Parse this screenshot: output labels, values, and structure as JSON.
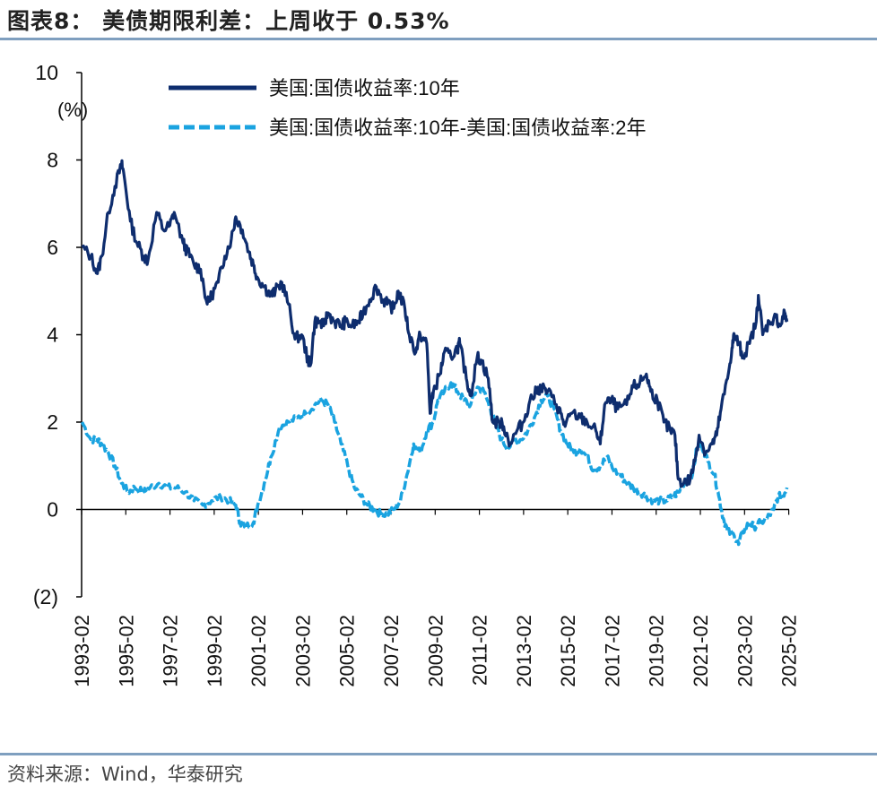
{
  "header": {
    "title": "图表8：  美债期限利差：上周收于 0.53%"
  },
  "footer": {
    "source": "资料来源：Wind，华泰研究"
  },
  "colors": {
    "series_10y": "#0e2d6e",
    "series_spread": "#1aa3e0",
    "rule": "#7f9fbf"
  },
  "chart_data": {
    "type": "line",
    "title": "美债期限利差：上周收于 0.53%",
    "ylabel": "(%)",
    "ylim": [
      -2,
      10
    ],
    "yticks": [
      10,
      8,
      6,
      4,
      2,
      0,
      -2
    ],
    "ytick_labels": [
      "10",
      "8",
      "6",
      "4",
      "2",
      "0",
      "(2)"
    ],
    "xlim": [
      1993.08,
      2025.3
    ],
    "xtick_labels": [
      "1993-02",
      "1995-02",
      "1997-02",
      "1999-02",
      "2001-02",
      "2003-02",
      "2005-02",
      "2007-02",
      "2009-02",
      "2011-02",
      "2013-02",
      "2015-02",
      "2017-02",
      "2019-02",
      "2021-02",
      "2023-02",
      "2025-02"
    ],
    "legend_position": "top",
    "series": [
      {
        "name": "美国:国债收益率:10年",
        "style": "solid",
        "x": [
          1993.1,
          1993.5,
          1993.8,
          1994.0,
          1994.3,
          1994.6,
          1994.9,
          1995.0,
          1995.3,
          1995.6,
          1995.9,
          1996.1,
          1996.5,
          1996.8,
          1997.1,
          1997.3,
          1997.7,
          1997.9,
          1998.2,
          1998.5,
          1998.8,
          1999.0,
          1999.3,
          1999.6,
          1999.9,
          2000.1,
          2000.4,
          2000.7,
          2000.9,
          2001.1,
          2001.4,
          2001.7,
          2001.9,
          2002.2,
          2002.5,
          2002.8,
          2003.1,
          2003.4,
          2003.5,
          2003.7,
          2003.9,
          2004.1,
          2004.3,
          2004.6,
          2004.9,
          2005.1,
          2005.4,
          2005.7,
          2005.9,
          2006.2,
          2006.5,
          2006.8,
          2007.0,
          2007.3,
          2007.5,
          2007.8,
          2008.0,
          2008.3,
          2008.5,
          2008.8,
          2008.95,
          2009.1,
          2009.4,
          2009.6,
          2009.9,
          2010.2,
          2010.3,
          2010.6,
          2010.8,
          2011.1,
          2011.3,
          2011.6,
          2011.8,
          2012.1,
          2012.3,
          2012.6,
          2012.9,
          2013.2,
          2013.5,
          2013.8,
          2014.0,
          2014.3,
          2014.7,
          2014.9,
          2015.1,
          2015.4,
          2015.8,
          2016.1,
          2016.5,
          2016.7,
          2016.9,
          2017.2,
          2017.5,
          2017.9,
          2018.2,
          2018.5,
          2018.8,
          2019.0,
          2019.3,
          2019.6,
          2019.9,
          2020.1,
          2020.25,
          2020.5,
          2020.8,
          2021.0,
          2021.2,
          2021.5,
          2021.8,
          2022.0,
          2022.2,
          2022.5,
          2022.7,
          2022.8,
          2023.0,
          2023.2,
          2023.5,
          2023.8,
          2023.9,
          2024.1,
          2024.4,
          2024.7,
          2024.9,
          2025.1,
          2025.2
        ],
        "values": [
          6.0,
          5.8,
          5.4,
          5.8,
          6.8,
          7.4,
          7.9,
          7.7,
          6.6,
          6.1,
          5.8,
          5.7,
          6.8,
          6.4,
          6.5,
          6.8,
          6.1,
          5.9,
          5.6,
          5.5,
          4.7,
          4.9,
          5.2,
          5.8,
          6.2,
          6.7,
          6.4,
          5.9,
          5.6,
          5.3,
          5.1,
          4.9,
          5.0,
          5.2,
          4.7,
          3.9,
          4.0,
          3.4,
          3.3,
          4.3,
          4.3,
          4.2,
          4.5,
          4.3,
          4.2,
          4.3,
          4.2,
          4.3,
          4.5,
          4.8,
          5.1,
          4.8,
          4.7,
          4.6,
          5.0,
          4.6,
          4.0,
          3.6,
          4.0,
          3.8,
          2.2,
          2.7,
          3.1,
          3.6,
          3.5,
          3.7,
          3.8,
          3.0,
          2.6,
          3.5,
          3.4,
          3.0,
          2.0,
          2.0,
          1.9,
          1.5,
          1.8,
          2.0,
          2.5,
          2.7,
          2.8,
          2.7,
          2.4,
          2.2,
          1.9,
          2.2,
          2.1,
          2.0,
          1.8,
          1.5,
          2.4,
          2.5,
          2.3,
          2.4,
          2.8,
          2.9,
          3.1,
          2.7,
          2.5,
          2.0,
          1.8,
          1.7,
          0.7,
          0.6,
          0.7,
          1.1,
          1.7,
          1.3,
          1.5,
          1.7,
          2.3,
          3.0,
          3.7,
          4.0,
          3.8,
          3.5,
          3.8,
          4.3,
          4.9,
          4.0,
          4.3,
          4.4,
          4.2,
          4.5,
          4.3
        ]
      },
      {
        "name": "美国:国债收益率:10年-美国:国债收益率:2年",
        "style": "dashed",
        "x": [
          1993.1,
          1993.5,
          1993.8,
          1994.0,
          1994.3,
          1994.6,
          1994.9,
          1995.2,
          1995.5,
          1995.9,
          1996.2,
          1996.6,
          1997.0,
          1997.4,
          1997.8,
          1998.2,
          1998.6,
          1999.0,
          1999.4,
          1999.8,
          2000.1,
          2000.3,
          2000.5,
          2000.9,
          2001.1,
          2001.4,
          2001.7,
          2002.1,
          2002.5,
          2002.9,
          2003.3,
          2003.7,
          2004.0,
          2004.3,
          2004.6,
          2004.9,
          2005.2,
          2005.5,
          2005.8,
          2006.1,
          2006.4,
          2006.7,
          2007.0,
          2007.3,
          2007.6,
          2007.9,
          2008.2,
          2008.5,
          2008.8,
          2009.1,
          2009.3,
          2009.6,
          2009.9,
          2010.2,
          2010.5,
          2010.8,
          2011.1,
          2011.4,
          2011.7,
          2011.9,
          2012.2,
          2012.5,
          2012.8,
          2013.1,
          2013.4,
          2013.7,
          2014.0,
          2014.3,
          2014.6,
          2014.9,
          2015.2,
          2015.5,
          2015.8,
          2016.1,
          2016.4,
          2016.7,
          2017.0,
          2017.3,
          2017.6,
          2017.9,
          2018.2,
          2018.5,
          2018.8,
          2019.1,
          2019.4,
          2019.7,
          2020.0,
          2020.3,
          2020.6,
          2020.9,
          2021.1,
          2021.3,
          2021.6,
          2021.9,
          2022.1,
          2022.3,
          2022.5,
          2022.8,
          2023.0,
          2023.2,
          2023.5,
          2023.7,
          2024.0,
          2024.3,
          2024.6,
          2024.8,
          2025.0,
          2025.2
        ],
        "values": [
          2.0,
          1.6,
          1.6,
          1.5,
          1.3,
          1.0,
          0.6,
          0.4,
          0.5,
          0.4,
          0.5,
          0.6,
          0.5,
          0.5,
          0.4,
          0.2,
          0.1,
          0.2,
          0.3,
          0.2,
          0.1,
          -0.3,
          -0.4,
          -0.3,
          0.1,
          0.6,
          1.2,
          1.9,
          2.0,
          2.1,
          2.2,
          2.4,
          2.5,
          2.4,
          2.0,
          1.5,
          1.0,
          0.5,
          0.3,
          0.1,
          0.0,
          -0.1,
          -0.1,
          0.0,
          0.2,
          0.8,
          1.5,
          1.3,
          1.8,
          2.0,
          2.5,
          2.7,
          2.9,
          2.7,
          2.5,
          2.4,
          2.8,
          2.7,
          2.3,
          2.0,
          1.6,
          1.4,
          1.6,
          1.6,
          1.8,
          2.1,
          2.5,
          2.6,
          2.3,
          1.8,
          1.5,
          1.3,
          1.4,
          1.2,
          0.9,
          1.0,
          1.2,
          0.9,
          0.8,
          0.6,
          0.5,
          0.4,
          0.3,
          0.2,
          0.2,
          0.2,
          0.3,
          0.4,
          0.7,
          0.8,
          1.4,
          1.5,
          1.1,
          0.8,
          0.3,
          -0.2,
          -0.5,
          -0.6,
          -0.8,
          -0.5,
          -0.3,
          -0.4,
          -0.3,
          -0.2,
          0.0,
          0.3,
          0.3,
          0.5
        ]
      }
    ]
  }
}
